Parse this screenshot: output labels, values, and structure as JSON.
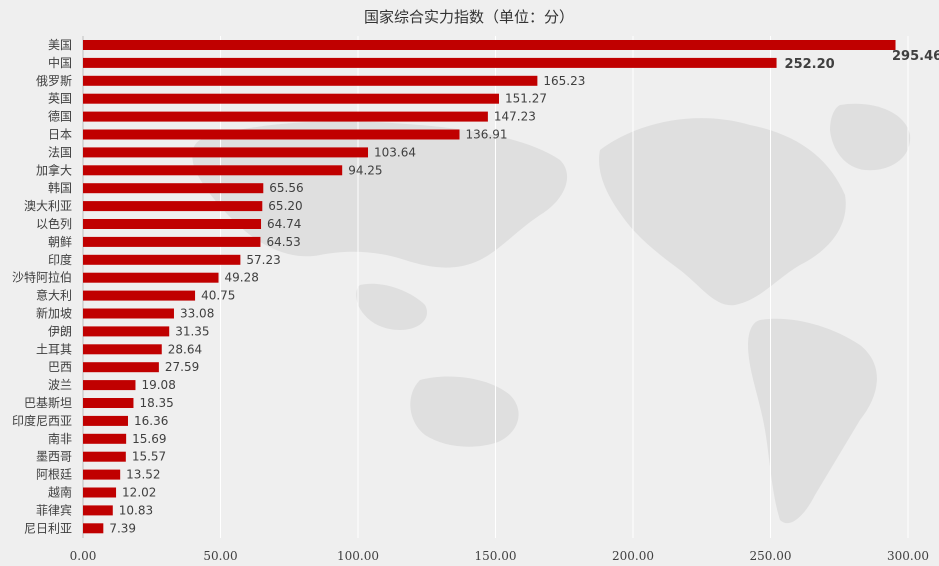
{
  "chart_data": {
    "type": "bar",
    "orientation": "horizontal",
    "title": "国家综合实力指数（单位：分）",
    "xlabel": "",
    "ylabel": "",
    "xlim": [
      0,
      300
    ],
    "x_ticks": [
      "0.00",
      "50.00",
      "100.00",
      "150.00",
      "200.00",
      "250.00",
      "300.00"
    ],
    "grid": true,
    "legend": "none",
    "bar_color": "#c00000",
    "background_color": "#efefef",
    "background_image": "world-map",
    "categories": [
      "美国",
      "中国",
      "俄罗斯",
      "英国",
      "德国",
      "日本",
      "法国",
      "加拿大",
      "韩国",
      "澳大利亚",
      "以色列",
      "朝鲜",
      "印度",
      "沙特阿拉伯",
      "意大利",
      "新加坡",
      "伊朗",
      "土耳其",
      "巴西",
      "波兰",
      "巴基斯坦",
      "印度尼西亚",
      "南非",
      "墨西哥",
      "阿根廷",
      "越南",
      "菲律宾",
      "尼日利亚"
    ],
    "values": [
      295.46,
      252.2,
      165.23,
      151.27,
      147.23,
      136.91,
      103.64,
      94.25,
      65.56,
      65.2,
      64.74,
      64.53,
      57.23,
      49.28,
      40.75,
      33.08,
      31.35,
      28.64,
      27.59,
      19.08,
      18.35,
      16.36,
      15.69,
      15.57,
      13.52,
      12.02,
      10.83,
      7.39
    ],
    "value_labels": [
      "295.46",
      "252.20",
      "165.23",
      "151.27",
      "147.23",
      "136.91",
      "103.64",
      "94.25",
      "65.56",
      "65.20",
      "64.74",
      "64.53",
      "57.23",
      "49.28",
      "40.75",
      "33.08",
      "31.35",
      "28.64",
      "27.59",
      "19.08",
      "18.35",
      "16.36",
      "15.69",
      "15.57",
      "13.52",
      "12.02",
      "10.83",
      "7.39"
    ]
  }
}
